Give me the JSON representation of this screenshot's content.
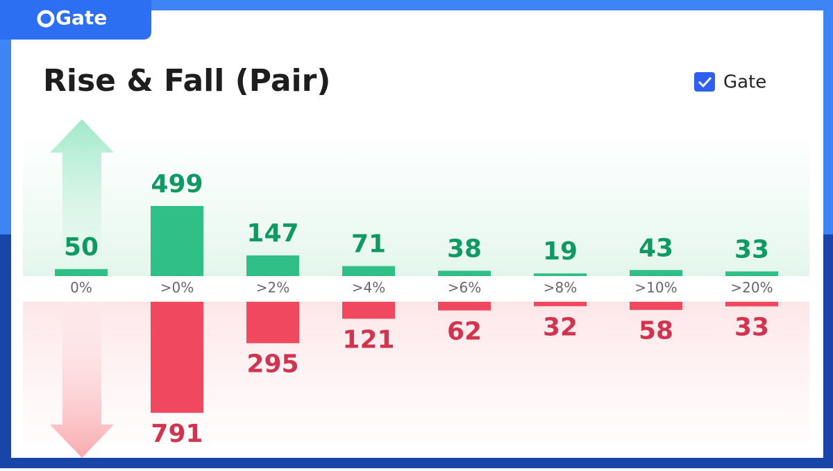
{
  "logo": "Gate",
  "chart_data": {
    "type": "rise-fall-bar",
    "title": "Rise & Fall (Pair)",
    "filter_label": "Gate",
    "categories": [
      "0%",
      ">0%",
      ">2%",
      ">4%",
      ">6%",
      ">8%",
      ">10%",
      ">20%"
    ],
    "series": [
      {
        "color": "#2fbf87",
        "label_color": "#0f9a63",
        "direction": "up",
        "values": [
          50,
          499,
          147,
          71,
          38,
          19,
          43,
          33
        ]
      },
      {
        "color": "#f0485e",
        "label_color": "#d0344f",
        "direction": "down",
        "values": [
          null,
          791,
          295,
          121,
          62,
          32,
          58,
          33
        ]
      }
    ]
  }
}
